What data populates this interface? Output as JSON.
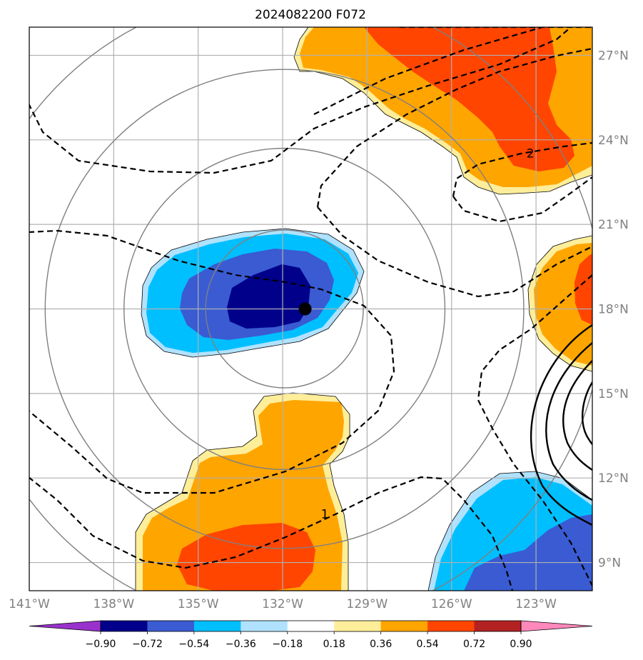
{
  "title": "2024082200 F072",
  "map": {
    "lon_range": [
      -141,
      -121
    ],
    "lat_range": [
      8,
      28
    ],
    "lon_ticks": [
      {
        "value": -141,
        "label": "141°W"
      },
      {
        "value": -138,
        "label": "138°W"
      },
      {
        "value": -135,
        "label": "135°W"
      },
      {
        "value": -132,
        "label": "132°W"
      },
      {
        "value": -129,
        "label": "129°W"
      },
      {
        "value": -126,
        "label": "126°W"
      },
      {
        "value": -123,
        "label": "123°W"
      }
    ],
    "lat_ticks": [
      {
        "value": 9,
        "label": "9°N"
      },
      {
        "value": 12,
        "label": "12°N"
      },
      {
        "value": 15,
        "label": "15°N"
      },
      {
        "value": 18,
        "label": "18°N"
      },
      {
        "value": 21,
        "label": "21°N"
      },
      {
        "value": 24,
        "label": "24°N"
      },
      {
        "value": 27,
        "label": "27°N"
      }
    ],
    "center_marker": {
      "lon": -131.2,
      "lat": 18.0
    },
    "range_rings_deg": [
      2.8,
      5.7,
      8.5,
      11.3
    ],
    "contour_labels": [
      {
        "text": "2",
        "lon": -123.2,
        "lat": 23.5
      },
      {
        "text": "1",
        "lon": -130.5,
        "lat": 10.7
      }
    ]
  },
  "colorbar": {
    "tick_labels": [
      "−0.90",
      "−0.72",
      "−0.54",
      "−0.36",
      "−0.18",
      "0.18",
      "0.36",
      "0.54",
      "0.72",
      "0.90"
    ],
    "colors": [
      "#9932cc",
      "#00008b",
      "#3a5bd2",
      "#00bfff",
      "#b0e2ff",
      "#ffffff",
      "#ffee99",
      "#ffa500",
      "#ff4500",
      "#b22222",
      "#ff88bb"
    ]
  },
  "colors": {
    "grid": "#b0b0b0",
    "ring": "#808080",
    "level_neg_090": "#00008b",
    "level_neg_072": "#3a5bd2",
    "level_neg_054": "#00bfff",
    "level_neg_036": "#b0e2ff",
    "level_pos_036": "#ffee99",
    "level_pos_054": "#ffa500",
    "level_pos_072": "#ff4500"
  }
}
